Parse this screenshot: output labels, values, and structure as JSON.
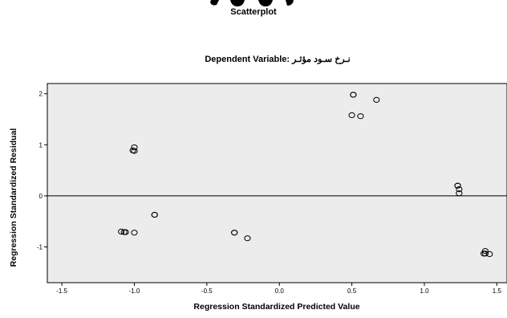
{
  "header": {
    "title": "Scatterplot"
  },
  "chart_data": {
    "type": "scatter",
    "title": "Dependent Variable: نـرخ سـود مؤثـر",
    "xlabel": "Regression Standardized Predicted Value",
    "ylabel": "Regression Standardized Residual",
    "xlim": [
      -1.6,
      1.57
    ],
    "ylim": [
      -1.7,
      2.2
    ],
    "xticks": [
      -1.5,
      -1.0,
      -0.5,
      0.0,
      0.5,
      1.0,
      1.5
    ],
    "xtick_labels": [
      "-1.5",
      "-1.0",
      "-0.5",
      "0.0",
      "0.5",
      "1.0",
      "1.5"
    ],
    "yticks": [
      -1,
      0,
      1,
      2
    ],
    "ytick_labels": [
      "-1",
      "0",
      "1",
      "2"
    ],
    "reference_line_y": 0,
    "grid": false,
    "series": [
      {
        "points": [
          {
            "x": 0.51,
            "y": 1.98
          },
          {
            "x": 0.51,
            "y": 1.98
          },
          {
            "x": 0.67,
            "y": 1.88
          },
          {
            "x": 0.5,
            "y": 1.58
          },
          {
            "x": 0.56,
            "y": 1.56
          },
          {
            "x": -1.0,
            "y": 0.95
          },
          {
            "x": -1.0,
            "y": 0.88
          },
          {
            "x": -1.01,
            "y": 0.89
          },
          {
            "x": -0.86,
            "y": -0.37
          },
          {
            "x": -0.86,
            "y": -0.37
          },
          {
            "x": -1.09,
            "y": -0.7
          },
          {
            "x": -1.07,
            "y": -0.71
          },
          {
            "x": -1.06,
            "y": -0.71
          },
          {
            "x": -1.0,
            "y": -0.72
          },
          {
            "x": -0.31,
            "y": -0.72
          },
          {
            "x": -0.31,
            "y": -0.72
          },
          {
            "x": -0.22,
            "y": -0.83
          },
          {
            "x": 1.23,
            "y": 0.2
          },
          {
            "x": 1.23,
            "y": 0.2
          },
          {
            "x": 1.24,
            "y": 0.13
          },
          {
            "x": 1.24,
            "y": 0.05
          },
          {
            "x": 1.42,
            "y": -1.08
          },
          {
            "x": 1.41,
            "y": -1.13
          },
          {
            "x": 1.42,
            "y": -1.13
          },
          {
            "x": 1.45,
            "y": -1.14
          }
        ]
      }
    ]
  }
}
